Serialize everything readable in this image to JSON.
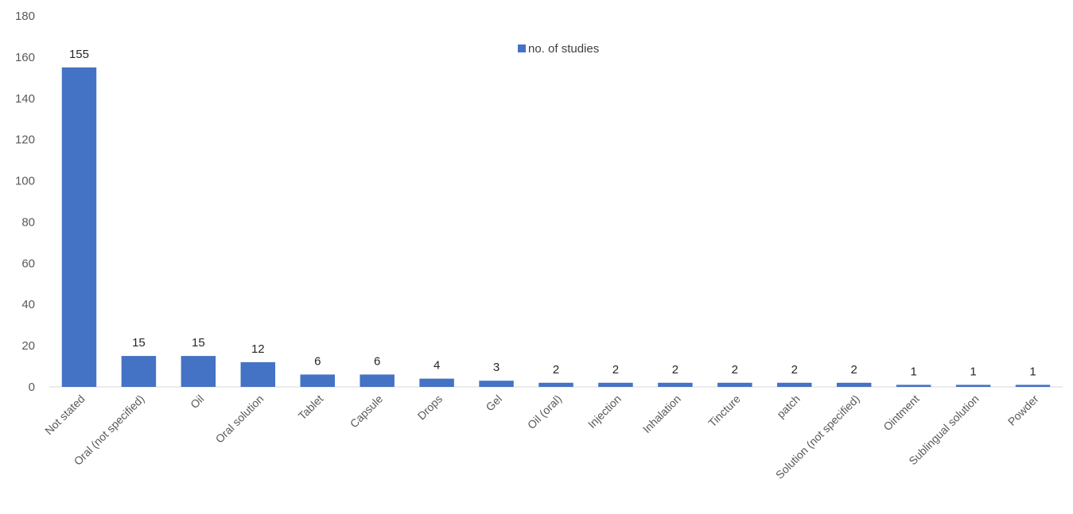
{
  "chart_data": {
    "type": "bar",
    "categories": [
      "Not stated",
      "Oral (not specified)",
      "Oil",
      "Oral solution",
      "Tablet",
      "Capsule",
      "Drops",
      "Gel",
      "Oil (oral)",
      "Injection",
      "Inhalation",
      "Tincture",
      "patch",
      "Solution (not specified)",
      "Ointment",
      "Sublingual solution",
      "Powder"
    ],
    "series": [
      {
        "name": "no. of studies",
        "values": [
          155,
          15,
          15,
          12,
          6,
          6,
          4,
          3,
          2,
          2,
          2,
          2,
          2,
          2,
          1,
          1,
          1
        ],
        "color": "#4472C4"
      }
    ],
    "ylim": [
      0,
      180
    ],
    "yticks": [
      0,
      20,
      40,
      60,
      80,
      100,
      120,
      140,
      160,
      180
    ],
    "grid": false,
    "legend_position": "top-center",
    "title": "",
    "xlabel": "",
    "ylabel": ""
  }
}
